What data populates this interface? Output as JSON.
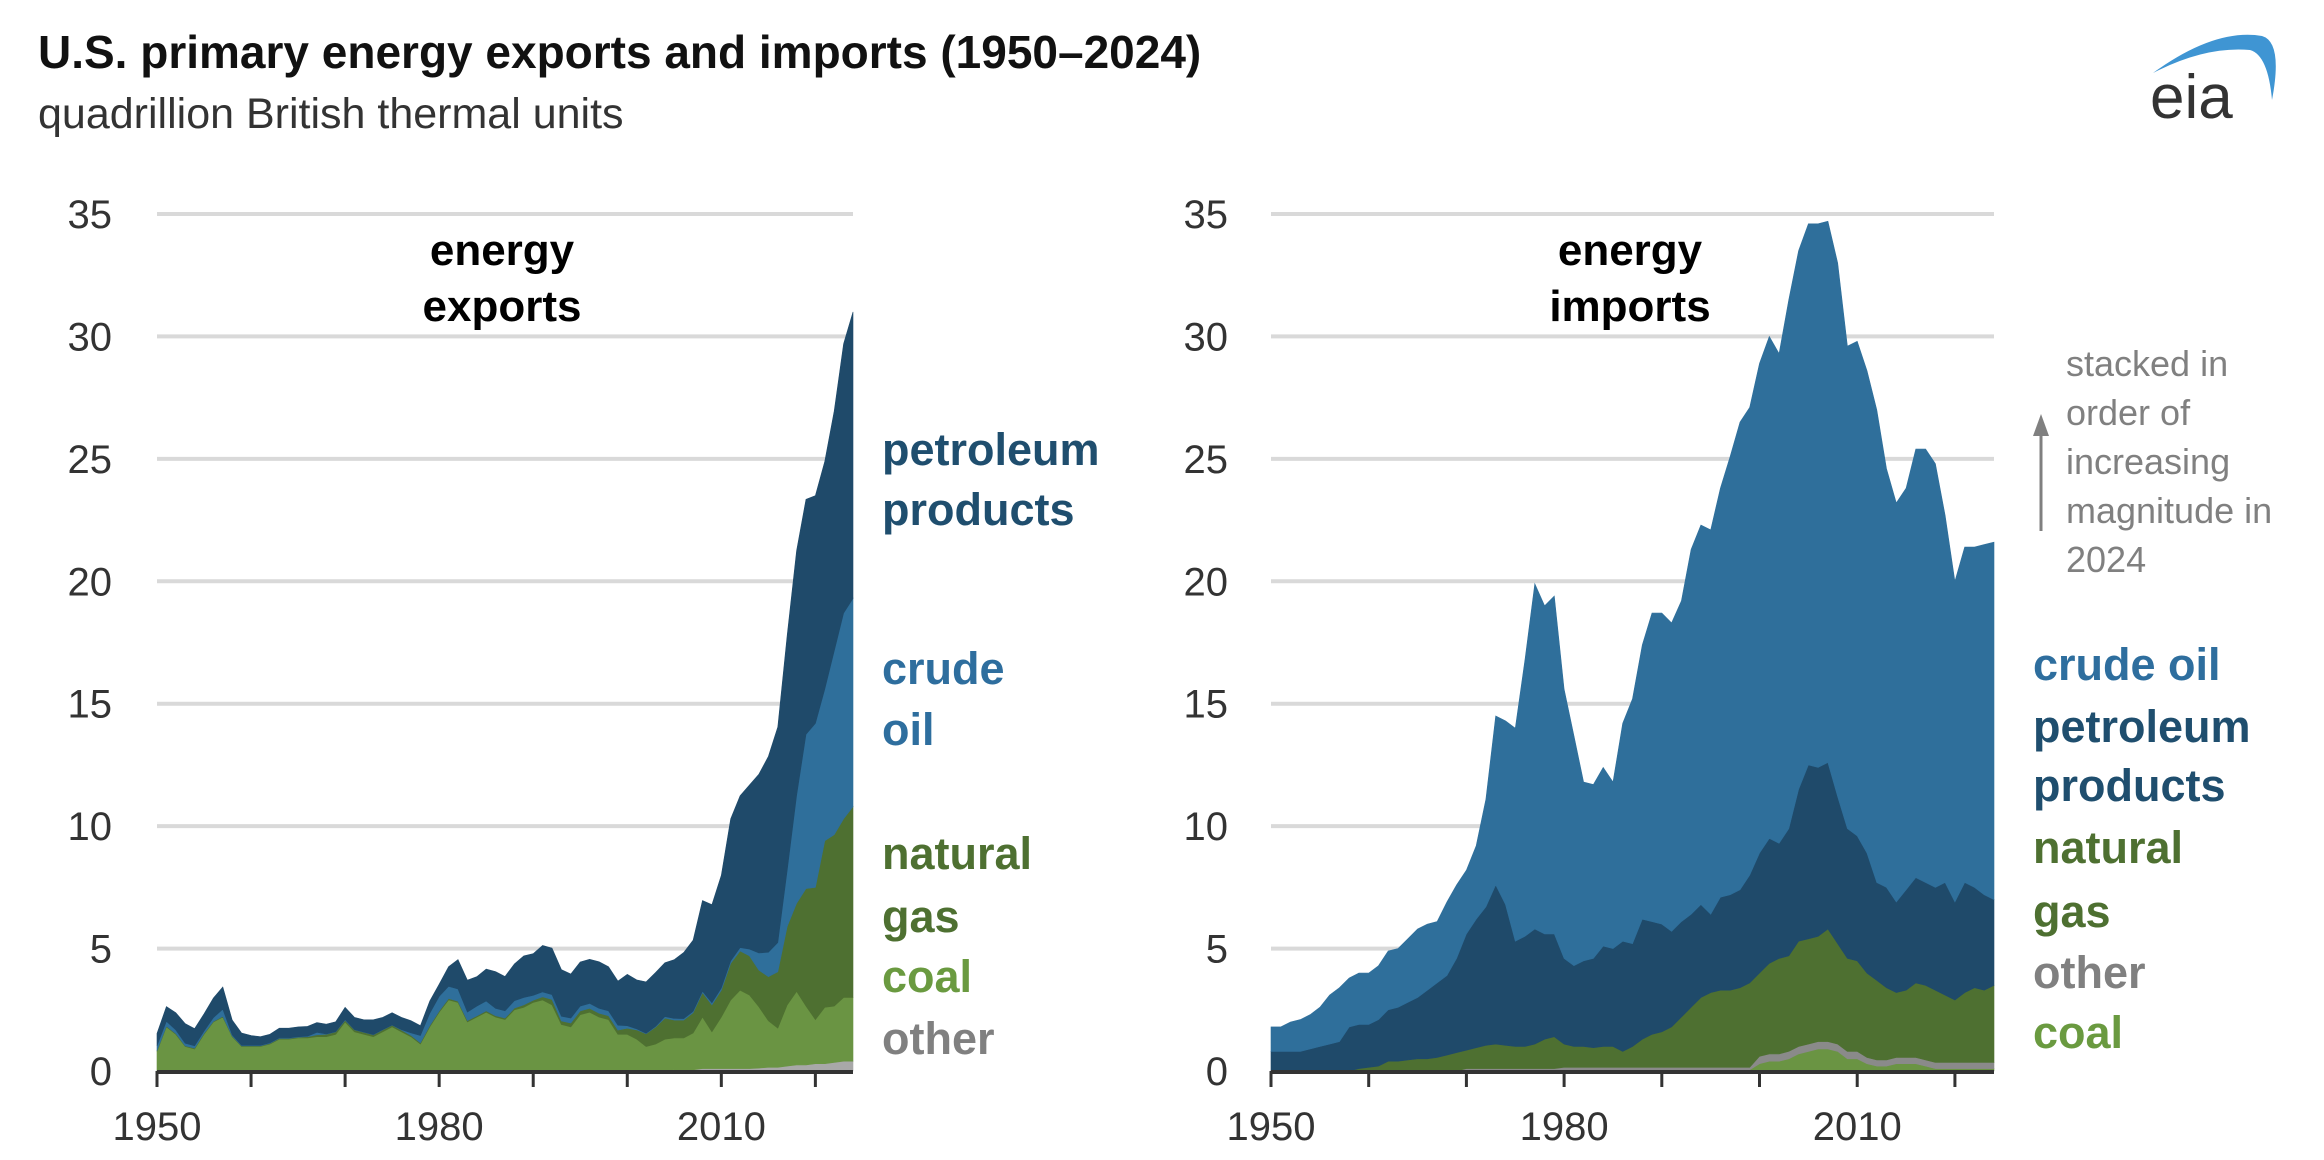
{
  "header": {
    "title": "U.S. primary energy exports and imports (1950–2024)",
    "subtitle": "quadrillion British thermal units",
    "logo_text": "eia"
  },
  "note": [
    "stacked in",
    "order of",
    "increasing",
    "magnitude in",
    "2024"
  ],
  "colors": {
    "petroleum_products": "#1f4a6a",
    "crude_oil": "#2f6f9b",
    "natural_gas": "#4e7031",
    "coal": "#6a9443",
    "other": "#9a9a9a",
    "grid": "#d9d9d9",
    "logo_arc": "#3f95d3"
  },
  "chart_data": [
    {
      "type": "area",
      "stacked": true,
      "title": [
        "energy",
        "exports"
      ],
      "x_start": 1950,
      "x_end": 2024,
      "xtick_labels": [
        "1950",
        "1980",
        "2010"
      ],
      "xtick_step": 10,
      "ylim": [
        0,
        35
      ],
      "yticks": [
        "0",
        "5",
        "10",
        "15",
        "20",
        "25",
        "30",
        "35"
      ],
      "grid": true,
      "series": [
        {
          "label": [
            "other"
          ],
          "color": "#a8a8a8",
          "label_color": "#808080",
          "values": [
            0,
            0,
            0,
            0,
            0,
            0,
            0,
            0,
            0,
            0,
            0,
            0,
            0,
            0,
            0,
            0,
            0,
            0,
            0,
            0,
            0,
            0,
            0,
            0,
            0,
            0,
            0,
            0,
            0,
            0,
            0,
            0,
            0,
            0,
            0,
            0,
            0,
            0,
            0,
            0,
            0,
            0,
            0,
            0,
            0,
            0,
            0,
            0,
            0,
            0,
            0,
            0,
            0,
            0,
            0,
            0.05,
            0.05,
            0.05,
            0.1,
            0.1,
            0.1,
            0.1,
            0.1,
            0.1,
            0.12,
            0.15,
            0.15,
            0.2,
            0.25,
            0.25,
            0.3,
            0.3,
            0.35,
            0.4,
            0.4
          ]
        },
        {
          "label": [
            "coal"
          ],
          "color": "#6a9443",
          "label_color": "#6a9a40",
          "values": [
            0.8,
            1.8,
            1.5,
            1.0,
            0.9,
            1.5,
            2.0,
            2.2,
            1.4,
            1.0,
            1.0,
            1.0,
            1.1,
            1.3,
            1.3,
            1.35,
            1.35,
            1.4,
            1.4,
            1.5,
            2.0,
            1.6,
            1.5,
            1.4,
            1.6,
            1.8,
            1.6,
            1.4,
            1.1,
            1.8,
            2.4,
            2.9,
            2.8,
            2.0,
            2.2,
            2.4,
            2.2,
            2.1,
            2.5,
            2.6,
            2.8,
            2.9,
            2.7,
            1.9,
            1.8,
            2.3,
            2.4,
            2.2,
            2.1,
            1.5,
            1.5,
            1.3,
            1.0,
            1.1,
            1.3,
            1.3,
            1.3,
            1.5,
            2.1,
            1.5,
            2.1,
            2.8,
            3.2,
            3.0,
            2.5,
            1.9,
            1.6,
            2.5,
            3.0,
            2.4,
            1.8,
            2.3,
            2.3,
            2.6,
            2.6
          ]
        },
        {
          "label": [
            "natural",
            "gas"
          ],
          "color": "#4e7031",
          "label_color": "#4e7031",
          "values": [
            0.03,
            0.03,
            0.03,
            0.03,
            0.03,
            0.03,
            0.03,
            0.03,
            0.03,
            0.03,
            0.03,
            0.03,
            0.03,
            0.03,
            0.03,
            0.03,
            0.05,
            0.08,
            0.1,
            0.1,
            0.07,
            0.08,
            0.08,
            0.08,
            0.08,
            0.07,
            0.07,
            0.06,
            0.05,
            0.06,
            0.05,
            0.06,
            0.05,
            0.06,
            0.05,
            0.06,
            0.06,
            0.06,
            0.07,
            0.1,
            0.09,
            0.13,
            0.22,
            0.14,
            0.16,
            0.15,
            0.16,
            0.16,
            0.16,
            0.17,
            0.25,
            0.38,
            0.52,
            0.69,
            0.86,
            0.73,
            0.73,
            0.83,
            1.0,
            1.1,
            1.1,
            1.5,
            1.6,
            1.6,
            1.5,
            1.8,
            2.3,
            3.2,
            3.6,
            4.8,
            5.4,
            6.8,
            7.0,
            7.3,
            7.8
          ]
        },
        {
          "label": [
            "crude",
            "oil"
          ],
          "color": "#2f6f9b",
          "label_color": "#2e6e9e",
          "values": [
            0.2,
            0.2,
            0.15,
            0.1,
            0.1,
            0.1,
            0.15,
            0.3,
            0.05,
            0.02,
            0.02,
            0.02,
            0.02,
            0.02,
            0.02,
            0.02,
            0.02,
            0.1,
            0.01,
            0.01,
            0.03,
            0.01,
            0.01,
            0.01,
            0.01,
            0.01,
            0.02,
            0.1,
            0.3,
            0.5,
            0.6,
            0.5,
            0.5,
            0.35,
            0.4,
            0.4,
            0.3,
            0.3,
            0.3,
            0.3,
            0.2,
            0.2,
            0.2,
            0.2,
            0.2,
            0.2,
            0.2,
            0.2,
            0.2,
            0.2,
            0.1,
            0.04,
            0.02,
            0.03,
            0.06,
            0.07,
            0.06,
            0.06,
            0.06,
            0.09,
            0.09,
            0.1,
            0.14,
            0.28,
            0.7,
            1.0,
            1.2,
            2.3,
            4.4,
            6.3,
            6.7,
            6.2,
            7.5,
            8.4,
            8.5
          ]
        },
        {
          "label": [
            "petroleum",
            "products"
          ],
          "color": "#1f4a6a",
          "label_color": "#1f4e6e",
          "values": [
            0.5,
            0.6,
            0.7,
            0.8,
            0.7,
            0.7,
            0.8,
            0.9,
            0.6,
            0.5,
            0.4,
            0.35,
            0.35,
            0.4,
            0.4,
            0.4,
            0.4,
            0.4,
            0.4,
            0.4,
            0.5,
            0.5,
            0.5,
            0.6,
            0.5,
            0.5,
            0.5,
            0.5,
            0.4,
            0.5,
            0.5,
            0.8,
            1.2,
            1.3,
            1.2,
            1.3,
            1.5,
            1.4,
            1.5,
            1.7,
            1.7,
            1.9,
            1.9,
            1.9,
            1.8,
            1.8,
            1.8,
            1.9,
            1.8,
            1.8,
            2.1,
            2.0,
            2.1,
            2.2,
            2.2,
            2.4,
            2.7,
            2.9,
            3.7,
            4.0,
            4.6,
            5.8,
            6.2,
            6.7,
            7.3,
            8.0,
            8.8,
            9.6,
            10.0,
            9.6,
            9.3,
            9.3,
            9.8,
            11.0,
            11.7
          ]
        }
      ]
    },
    {
      "type": "area",
      "stacked": true,
      "title": [
        "energy",
        "imports"
      ],
      "x_start": 1950,
      "x_end": 2024,
      "xtick_labels": [
        "1950",
        "1980",
        "2010"
      ],
      "xtick_step": 10,
      "ylim": [
        0,
        35
      ],
      "yticks": [
        "0",
        "5",
        "10",
        "15",
        "20",
        "25",
        "30",
        "35"
      ],
      "grid": true,
      "series": [
        {
          "label": [
            "coal"
          ],
          "color": "#6a9443",
          "label_color": "#6a9a40",
          "values": [
            0,
            0,
            0,
            0,
            0,
            0,
            0,
            0,
            0,
            0,
            0,
            0,
            0,
            0,
            0,
            0,
            0,
            0,
            0,
            0,
            0,
            0,
            0,
            0,
            0,
            0,
            0,
            0,
            0,
            0,
            0.05,
            0.05,
            0.05,
            0.05,
            0.05,
            0.05,
            0.05,
            0.05,
            0.05,
            0.05,
            0.05,
            0.05,
            0.05,
            0.05,
            0.05,
            0.05,
            0.05,
            0.05,
            0.05,
            0.05,
            0.3,
            0.4,
            0.4,
            0.5,
            0.7,
            0.8,
            0.9,
            0.9,
            0.8,
            0.5,
            0.5,
            0.3,
            0.2,
            0.2,
            0.3,
            0.3,
            0.3,
            0.2,
            0.1,
            0.1,
            0.1,
            0.1,
            0.1,
            0.1,
            0.1
          ]
        },
        {
          "label": [
            "other"
          ],
          "color": "#8a8a8a",
          "label_color": "#808080",
          "values": [
            0,
            0,
            0,
            0,
            0,
            0,
            0,
            0,
            0,
            0,
            0,
            0,
            0,
            0,
            0,
            0,
            0,
            0,
            0,
            0,
            0.1,
            0.1,
            0.1,
            0.1,
            0.1,
            0.1,
            0.1,
            0.1,
            0.1,
            0.1,
            0.1,
            0.1,
            0.1,
            0.1,
            0.1,
            0.1,
            0.1,
            0.1,
            0.1,
            0.1,
            0.1,
            0.1,
            0.1,
            0.1,
            0.1,
            0.1,
            0.1,
            0.1,
            0.1,
            0.1,
            0.3,
            0.3,
            0.3,
            0.3,
            0.3,
            0.3,
            0.3,
            0.3,
            0.3,
            0.3,
            0.3,
            0.25,
            0.25,
            0.25,
            0.25,
            0.25,
            0.25,
            0.25,
            0.25,
            0.25,
            0.25,
            0.25,
            0.25,
            0.25,
            0.25
          ]
        },
        {
          "label": [
            "natural",
            "gas"
          ],
          "color": "#4e7031",
          "label_color": "#4e7031",
          "values": [
            0,
            0,
            0,
            0,
            0,
            0,
            0,
            0,
            0,
            0.1,
            0.15,
            0.2,
            0.4,
            0.4,
            0.45,
            0.5,
            0.5,
            0.55,
            0.65,
            0.75,
            0.75,
            0.85,
            0.95,
            1.0,
            0.95,
            0.9,
            0.9,
            1.0,
            1.2,
            1.3,
            0.95,
            0.85,
            0.85,
            0.8,
            0.85,
            0.85,
            0.65,
            0.85,
            1.15,
            1.35,
            1.45,
            1.65,
            2.05,
            2.45,
            2.85,
            3.05,
            3.15,
            3.15,
            3.25,
            3.45,
            3.4,
            3.7,
            3.9,
            3.9,
            4.3,
            4.3,
            4.3,
            4.6,
            4.1,
            3.8,
            3.7,
            3.45,
            3.25,
            2.95,
            2.65,
            2.75,
            3.05,
            3.05,
            2.95,
            2.75,
            2.55,
            2.85,
            3.05,
            2.95,
            3.15
          ]
        },
        {
          "label": [
            "petroleum",
            "products"
          ],
          "color": "#1f4a6a",
          "label_color": "#1f4e6e",
          "values": [
            0.8,
            0.8,
            0.8,
            0.8,
            0.9,
            1.0,
            1.1,
            1.2,
            1.8,
            1.8,
            1.75,
            1.9,
            2.1,
            2.2,
            2.35,
            2.5,
            2.8,
            3.05,
            3.25,
            3.85,
            4.75,
            5.25,
            5.65,
            6.5,
            5.75,
            4.3,
            4.5,
            4.7,
            4.3,
            4.2,
            3.5,
            3.3,
            3.5,
            3.65,
            4.1,
            4.0,
            4.5,
            4.2,
            4.9,
            4.6,
            4.4,
            3.9,
            3.9,
            3.8,
            3.8,
            3.2,
            3.8,
            3.9,
            4.0,
            4.4,
            4.9,
            5.1,
            4.7,
            5.2,
            6.2,
            7.1,
            6.9,
            6.8,
            6.0,
            5.3,
            5.1,
            4.9,
            4.0,
            4.1,
            3.7,
            4.1,
            4.3,
            4.2,
            4.2,
            4.6,
            4.0,
            4.5,
            4.1,
            3.9,
            3.5
          ]
        },
        {
          "label": [
            "crude oil"
          ],
          "color": "#2f6f9b",
          "label_color": "#2e6e9e",
          "values": [
            1.0,
            1.0,
            1.2,
            1.3,
            1.4,
            1.6,
            2.0,
            2.2,
            2.0,
            2.1,
            2.1,
            2.2,
            2.4,
            2.4,
            2.6,
            2.8,
            2.7,
            2.5,
            3.0,
            3.0,
            2.6,
            3.0,
            4.4,
            6.9,
            7.5,
            8.7,
            11.3,
            14.1,
            13.4,
            13.8,
            11.0,
            9.4,
            7.3,
            7.1,
            7.3,
            6.8,
            8.9,
            10.0,
            11.2,
            12.6,
            12.7,
            12.6,
            13.1,
            14.9,
            15.5,
            15.7,
            16.7,
            17.9,
            19.1,
            19.1,
            20.0,
            20.5,
            20.0,
            21.6,
            22.0,
            22.1,
            22.2,
            22.1,
            21.8,
            19.7,
            20.2,
            19.7,
            19.3,
            17.1,
            16.3,
            16.4,
            17.5,
            17.7,
            17.3,
            15.0,
            13.1,
            13.7,
            13.9,
            14.3,
            14.6
          ]
        }
      ]
    }
  ]
}
